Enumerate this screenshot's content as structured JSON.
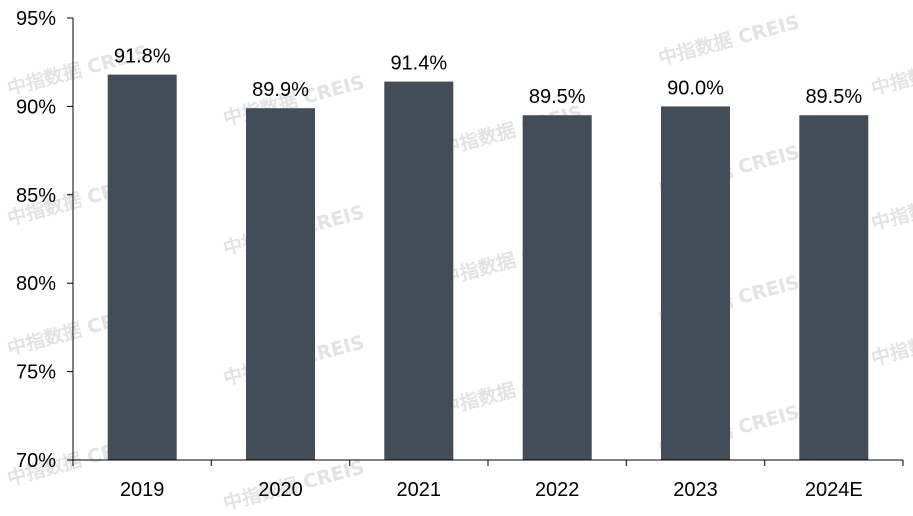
{
  "watermark": "中指数据 CREIS",
  "colors": {
    "bar": "#434d57",
    "axis": "#000000",
    "text": "#000000"
  },
  "chart_data": {
    "type": "bar",
    "categories": [
      "2019",
      "2020",
      "2021",
      "2022",
      "2023",
      "2024E"
    ],
    "values": [
      91.8,
      89.9,
      91.4,
      89.5,
      90.0,
      89.5
    ],
    "value_labels": [
      "91.8%",
      "89.9%",
      "91.4%",
      "89.5%",
      "90.0%",
      "89.5%"
    ],
    "ylim": [
      70,
      95
    ],
    "yticks": [
      "70%",
      "75%",
      "80%",
      "85%",
      "90%",
      "95%"
    ],
    "ytick_values": [
      70,
      75,
      80,
      85,
      90,
      95
    ],
    "title": "",
    "xlabel": "",
    "ylabel": "",
    "grid": false,
    "legend": "none"
  }
}
